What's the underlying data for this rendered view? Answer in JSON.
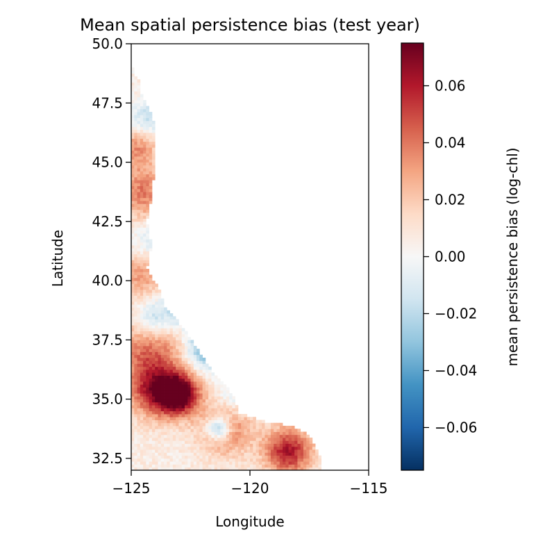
{
  "chart_data": {
    "type": "heatmap",
    "title": "Mean spatial persistence bias (test year)",
    "xlabel": "Longitude",
    "ylabel": "Latitude",
    "xlim": [
      -125,
      -115
    ],
    "ylim": [
      32,
      50
    ],
    "xticks": [
      -125,
      -120,
      -115
    ],
    "xtick_labels": [
      "−125",
      "−120",
      "−115"
    ],
    "yticks": [
      32.5,
      35.0,
      37.5,
      40.0,
      42.5,
      45.0,
      47.5,
      50.0
    ],
    "ytick_labels": [
      "32.5",
      "35.0",
      "37.5",
      "40.0",
      "42.5",
      "45.0",
      "47.5",
      "50.0"
    ],
    "colormap": "RdBu_r",
    "colorbar": {
      "label": "mean persistence bias (log-chl)",
      "vmin": -0.075,
      "vmax": 0.075,
      "ticks": [
        -0.06,
        -0.04,
        -0.02,
        0.0,
        0.02,
        0.04,
        0.06
      ],
      "tick_labels": [
        "−0.06",
        "−0.04",
        "−0.02",
        "0.00",
        "0.02",
        "0.04",
        "0.06"
      ],
      "colors": [
        "#053061",
        "#2166ac",
        "#4393c3",
        "#92c5de",
        "#d1e5f0",
        "#f7f7f7",
        "#fddbc7",
        "#f4a582",
        "#d6604d",
        "#b2182b",
        "#67001f"
      ]
    },
    "grid": false,
    "coastline_lon_by_lat": [
      [
        32.0,
        -117.0
      ],
      [
        32.6,
        -117.1
      ],
      [
        33.0,
        -117.3
      ],
      [
        33.5,
        -117.6
      ],
      [
        33.9,
        -118.4
      ],
      [
        34.0,
        -119.3
      ],
      [
        34.4,
        -120.5
      ],
      [
        35.0,
        -120.7
      ],
      [
        35.5,
        -121.0
      ],
      [
        36.0,
        -121.5
      ],
      [
        36.6,
        -121.9
      ],
      [
        37.0,
        -122.2
      ],
      [
        37.5,
        -122.5
      ],
      [
        37.8,
        -122.7
      ],
      [
        38.3,
        -123.1
      ],
      [
        38.9,
        -123.7
      ],
      [
        39.5,
        -123.8
      ],
      [
        40.0,
        -124.1
      ],
      [
        40.5,
        -124.4
      ],
      [
        41.5,
        -124.2
      ],
      [
        42.5,
        -124.4
      ],
      [
        43.5,
        -124.2
      ],
      [
        44.5,
        -124.1
      ],
      [
        45.5,
        -124.0
      ],
      [
        46.2,
        -124.0
      ],
      [
        47.0,
        -124.2
      ],
      [
        48.0,
        -124.7
      ],
      [
        48.4,
        -124.7
      ],
      [
        49.0,
        -125.0
      ],
      [
        50.0,
        -125.0
      ]
    ],
    "bias_regions": [
      {
        "lon": -123.0,
        "lat": 35.2,
        "value": 0.075,
        "spread": 0.6
      },
      {
        "lon": -124.0,
        "lat": 35.4,
        "value": 0.05,
        "spread": 0.8
      },
      {
        "lon": -118.4,
        "lat": 32.8,
        "value": 0.055,
        "spread": 0.7
      },
      {
        "lon": -121.0,
        "lat": 33.8,
        "value": 0.035,
        "spread": 0.8
      },
      {
        "lon": -124.2,
        "lat": 37.2,
        "value": 0.035,
        "spread": 1.0
      },
      {
        "lon": -121.8,
        "lat": 37.2,
        "value": -0.05,
        "spread": 0.6
      },
      {
        "lon": -122.6,
        "lat": 38.8,
        "value": -0.045,
        "spread": 0.5
      },
      {
        "lon": -124.0,
        "lat": 38.4,
        "value": -0.035,
        "spread": 0.6
      },
      {
        "lon": -121.3,
        "lat": 33.8,
        "value": -0.055,
        "spread": 0.35
      },
      {
        "lon": -120.5,
        "lat": 35.2,
        "value": -0.02,
        "spread": 0.6
      },
      {
        "lon": -124.6,
        "lat": 40.2,
        "value": 0.025,
        "spread": 0.7
      },
      {
        "lon": -124.0,
        "lat": 41.8,
        "value": -0.02,
        "spread": 0.6
      },
      {
        "lon": -124.5,
        "lat": 43.3,
        "value": 0.022,
        "spread": 0.7
      },
      {
        "lon": -124.7,
        "lat": 45.7,
        "value": 0.03,
        "spread": 0.6
      },
      {
        "lon": -124.5,
        "lat": 44.2,
        "value": 0.02,
        "spread": 0.6
      },
      {
        "lon": -124.3,
        "lat": 46.8,
        "value": -0.025,
        "spread": 0.6
      },
      {
        "lon": -124.6,
        "lat": 49.6,
        "value": -0.04,
        "spread": 0.35
      }
    ]
  }
}
